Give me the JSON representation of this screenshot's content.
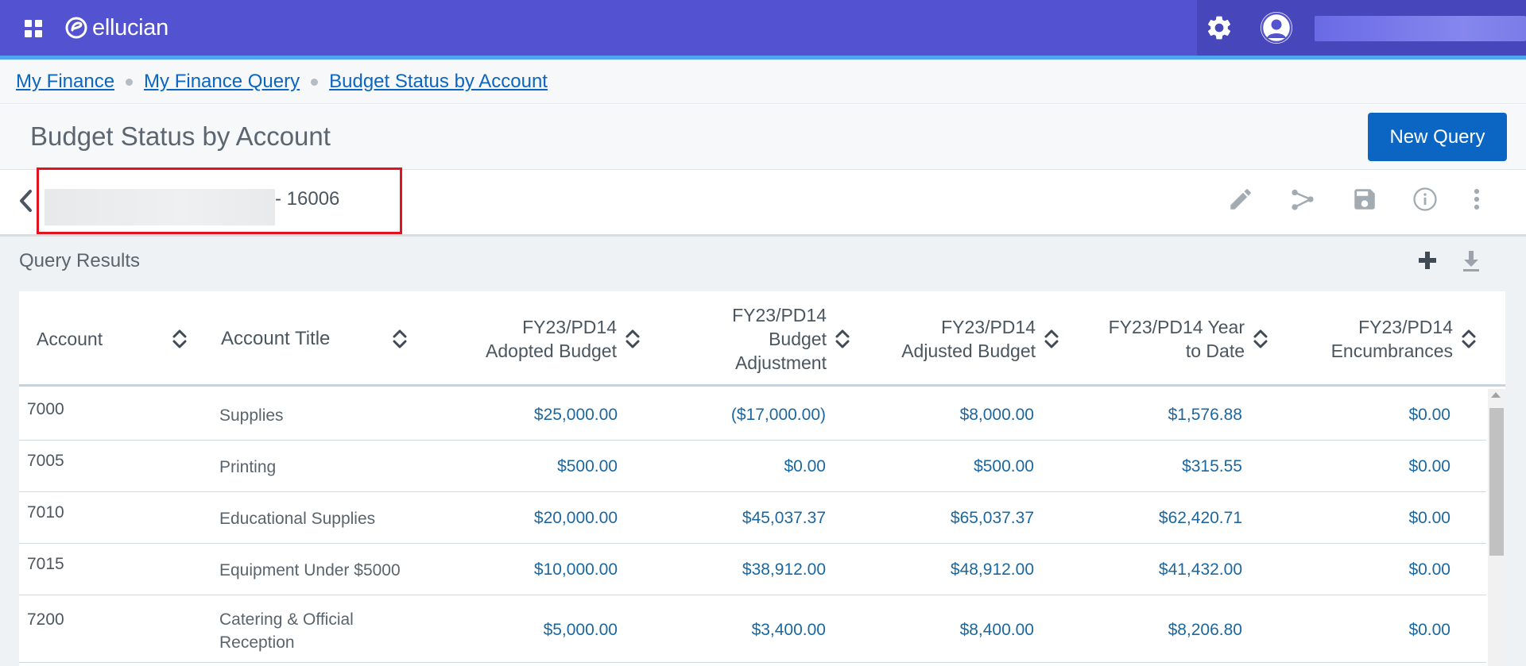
{
  "app": {
    "brand": "ellucian"
  },
  "breadcrumb": {
    "items": [
      {
        "label": "My Finance"
      },
      {
        "label": "My Finance Query"
      },
      {
        "label": "Budget Status by Account"
      }
    ]
  },
  "page": {
    "title": "Budget Status by Account",
    "new_query_label": "New Query"
  },
  "query": {
    "code_suffix": "- 16006"
  },
  "results": {
    "title": "Query Results",
    "columns": [
      {
        "line1": "Account",
        "line2": "",
        "line3": ""
      },
      {
        "line1": "Account Title",
        "line2": "",
        "line3": ""
      },
      {
        "line1": "FY23/PD14",
        "line2": "Adopted Budget",
        "line3": ""
      },
      {
        "line1": "FY23/PD14",
        "line2": "Budget",
        "line3": "Adjustment"
      },
      {
        "line1": "FY23/PD14",
        "line2": "Adjusted Budget",
        "line3": ""
      },
      {
        "line1": "FY23/PD14 Year",
        "line2": "to Date",
        "line3": ""
      },
      {
        "line1": "FY23/PD14",
        "line2": "Encumbrances",
        "line3": ""
      }
    ],
    "rows": [
      {
        "account": "7000",
        "title1": "Supplies",
        "title2": "",
        "adopted": "$25,000.00",
        "adjustment": "($17,000.00)",
        "adjusted": "$8,000.00",
        "ytd": "$1,576.88",
        "encumbrances": "$0.00"
      },
      {
        "account": "7005",
        "title1": "Printing",
        "title2": "",
        "adopted": "$500.00",
        "adjustment": "$0.00",
        "adjusted": "$500.00",
        "ytd": "$315.55",
        "encumbrances": "$0.00"
      },
      {
        "account": "7010",
        "title1": "Educational Supplies",
        "title2": "",
        "adopted": "$20,000.00",
        "adjustment": "$45,037.37",
        "adjusted": "$65,037.37",
        "ytd": "$62,420.71",
        "encumbrances": "$0.00"
      },
      {
        "account": "7015",
        "title1": "Equipment Under $5000",
        "title2": "",
        "adopted": "$10,000.00",
        "adjustment": "$38,912.00",
        "adjusted": "$48,912.00",
        "ytd": "$41,432.00",
        "encumbrances": "$0.00"
      },
      {
        "account": "7200",
        "title1": "Catering & Official",
        "title2": "Reception",
        "adopted": "$5,000.00",
        "adjustment": "$3,400.00",
        "adjusted": "$8,400.00",
        "ytd": "$8,206.80",
        "encumbrances": "$0.00"
      }
    ]
  },
  "colors": {
    "topbar": "#5353d1",
    "topbar_accent": "#4ea6ef",
    "primary_button": "#0a66c2",
    "link": "#0b66c3",
    "amount_text": "#1c679f",
    "highlight_box": "#e0141e"
  },
  "icons": {
    "apps": "apps-grid-icon",
    "settings": "gear-icon",
    "user": "user-avatar-icon",
    "back": "chevron-left-icon",
    "edit": "pencil-icon",
    "share": "share-icon",
    "save": "save-icon",
    "info": "info-icon",
    "more": "more-vertical-icon",
    "add": "plus-icon",
    "download": "download-icon",
    "sort": "sort-icon"
  }
}
